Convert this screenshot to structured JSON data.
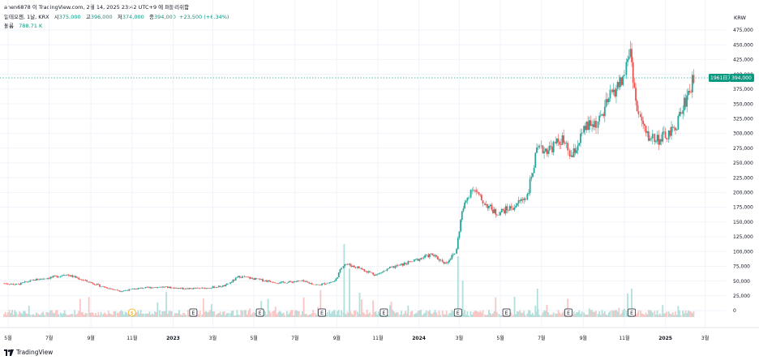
{
  "header": {
    "published_by": "ahen6878 이 TradingView.com, 2월 14, 2025 23:42 UTC+9 에 퍼블리쉬함"
  },
  "legend": {
    "symbol": "알테오젠, 1날, KRX",
    "open_label": "시",
    "open": "375,000",
    "high_label": "고",
    "high": "396,000",
    "low_label": "저",
    "low": "374,000",
    "close_label": "종",
    "close": "394,000",
    "change": "+23,500 (+6.34%)",
    "volume_label": "볼륨",
    "volume": "788.71 K"
  },
  "price_badge": {
    "countdown": "1961日70",
    "price": "394,000"
  },
  "footer": {
    "brand": "TradingView"
  },
  "colors": {
    "up": "#26a69a",
    "down": "#ef5350",
    "badge": "#089981",
    "last_price_line": "#22ab94",
    "dividend_marker": "#f7a600"
  },
  "chart_data": {
    "type": "candlestick",
    "currency": "KRW",
    "y_axis_ticks": [
      "475,000",
      "450,000",
      "425,000",
      "400,000",
      "375,000",
      "350,000",
      "325,000",
      "300,000",
      "275,000",
      "250,000",
      "225,000",
      "200,000",
      "175,000",
      "150,000",
      "125,000",
      "100,000",
      "75,000",
      "50,000",
      "25,000",
      "0"
    ],
    "ylim": [
      0,
      475000
    ],
    "x_axis_ticks": [
      "5월",
      "7월",
      "9월",
      "11월",
      "2023",
      "3월",
      "5월",
      "7월",
      "9월",
      "11월",
      "2024",
      "3월",
      "5월",
      "7월",
      "9월",
      "11월",
      "2025",
      "3월"
    ],
    "last_price": 394000,
    "price_path": [
      {
        "date": "2022-04-25",
        "price": 46000
      },
      {
        "date": "2022-05-15",
        "price": 44000
      },
      {
        "date": "2022-06-10",
        "price": 52000
      },
      {
        "date": "2022-07-15",
        "price": 58000
      },
      {
        "date": "2022-07-25",
        "price": 62000
      },
      {
        "date": "2022-08-20",
        "price": 52000
      },
      {
        "date": "2022-09-20",
        "price": 40000
      },
      {
        "date": "2022-10-15",
        "price": 33000
      },
      {
        "date": "2022-11-15",
        "price": 38000
      },
      {
        "date": "2022-12-15",
        "price": 40000
      },
      {
        "date": "2023-01-20",
        "price": 37000
      },
      {
        "date": "2023-02-20",
        "price": 38000
      },
      {
        "date": "2023-03-20",
        "price": 42000
      },
      {
        "date": "2023-04-10",
        "price": 58000
      },
      {
        "date": "2023-05-10",
        "price": 52000
      },
      {
        "date": "2023-06-10",
        "price": 47000
      },
      {
        "date": "2023-07-10",
        "price": 50000
      },
      {
        "date": "2023-08-05",
        "price": 43000
      },
      {
        "date": "2023-08-30",
        "price": 50000
      },
      {
        "date": "2023-09-12",
        "price": 80000
      },
      {
        "date": "2023-10-05",
        "price": 72000
      },
      {
        "date": "2023-10-30",
        "price": 60000
      },
      {
        "date": "2023-11-20",
        "price": 72000
      },
      {
        "date": "2023-12-20",
        "price": 82000
      },
      {
        "date": "2024-01-20",
        "price": 95000
      },
      {
        "date": "2024-02-10",
        "price": 80000
      },
      {
        "date": "2024-02-25",
        "price": 98000
      },
      {
        "date": "2024-03-05",
        "price": 165000
      },
      {
        "date": "2024-03-20",
        "price": 210000
      },
      {
        "date": "2024-04-05",
        "price": 185000
      },
      {
        "date": "2024-04-25",
        "price": 165000
      },
      {
        "date": "2024-05-20",
        "price": 175000
      },
      {
        "date": "2024-06-10",
        "price": 195000
      },
      {
        "date": "2024-06-25",
        "price": 270000
      },
      {
        "date": "2024-07-15",
        "price": 275000
      },
      {
        "date": "2024-08-01",
        "price": 290000
      },
      {
        "date": "2024-08-15",
        "price": 258000
      },
      {
        "date": "2024-09-05",
        "price": 310000
      },
      {
        "date": "2024-09-25",
        "price": 320000
      },
      {
        "date": "2024-10-15",
        "price": 370000
      },
      {
        "date": "2024-10-30",
        "price": 390000
      },
      {
        "date": "2024-11-10",
        "price": 445000
      },
      {
        "date": "2024-11-20",
        "price": 340000
      },
      {
        "date": "2024-12-05",
        "price": 295000
      },
      {
        "date": "2024-12-25",
        "price": 290000
      },
      {
        "date": "2025-01-15",
        "price": 305000
      },
      {
        "date": "2025-02-01",
        "price": 360000
      },
      {
        "date": "2025-02-14",
        "price": 394000
      }
    ],
    "earnings_markers": [
      "2023-01-31",
      "2023-05-10",
      "2023-08-10",
      "2023-11-10",
      "2024-02-28",
      "2024-05-10",
      "2024-08-10",
      "2024-11-12"
    ],
    "dividend_markers": [
      "2022-11-01"
    ]
  }
}
